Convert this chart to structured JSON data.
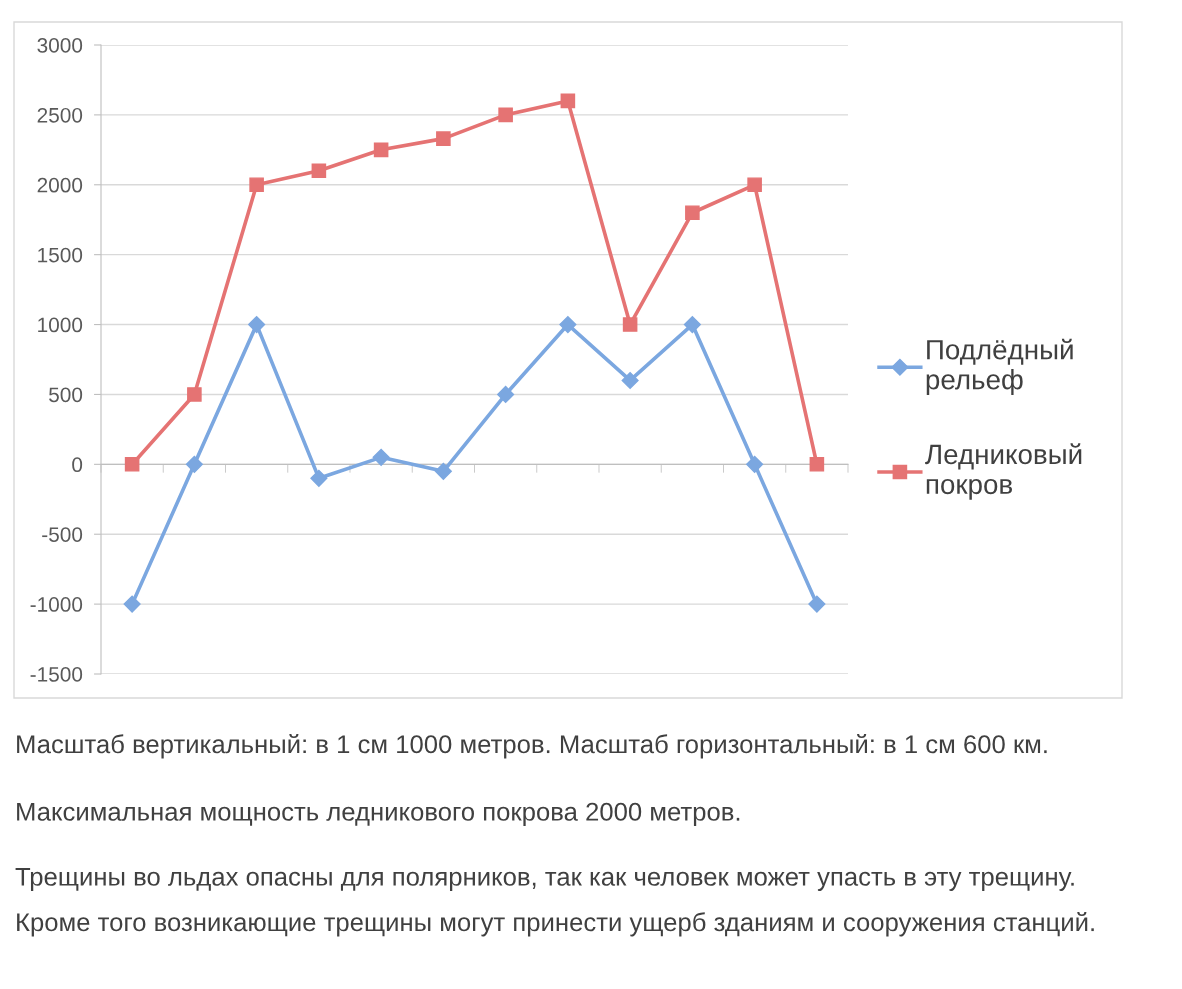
{
  "chart_data": {
    "type": "line",
    "categories": [
      null,
      null,
      null,
      null,
      null,
      null,
      null,
      null,
      null,
      null,
      null,
      null
    ],
    "ylim": [
      -1500,
      3000
    ],
    "yticks": [
      -1500,
      -1000,
      -500,
      0,
      500,
      1000,
      1500,
      2000,
      2500,
      3000
    ],
    "grid": "y",
    "legend": "right",
    "line_style": "solid",
    "series": [
      {
        "name": "Подлёдный рельеф",
        "color": "#7ba7e0",
        "marker": "diamond",
        "values": [
          -1000,
          0,
          1000,
          -100,
          50,
          -50,
          500,
          1000,
          600,
          1000,
          0,
          -1000
        ]
      },
      {
        "name": "Ледниковый покров",
        "color": "#e57373",
        "marker": "square",
        "values": [
          0,
          500,
          2000,
          2100,
          2250,
          2330,
          2500,
          2600,
          1000,
          1800,
          2000,
          0
        ]
      }
    ],
    "annotations": [
      "Масштаб вертикальный: в 1 см 1000 метров. Масштаб горизонтальный: в 1 см 600 км.",
      "Максимальная мощность ледникового покрова 2000 метров.",
      "Трещины во льдах опасны для полярников, так как человек может упасть в эту трещину.",
      "Кроме того возникающие трещины могут принести ущерб зданиям и сооружения станций."
    ]
  }
}
